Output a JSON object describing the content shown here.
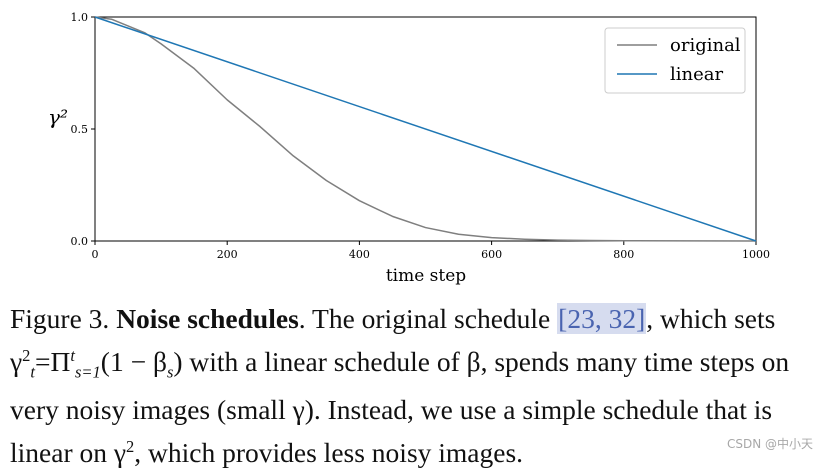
{
  "chart_data": {
    "type": "line",
    "xlabel": "time step",
    "ylabel": "γ²",
    "xlim": [
      0,
      1000
    ],
    "ylim": [
      0,
      1.0
    ],
    "xticks": [
      0,
      200,
      400,
      600,
      800,
      1000
    ],
    "yticks": [
      0.0,
      0.5,
      1.0
    ],
    "legend_position": "top-right",
    "series": [
      {
        "name": "original",
        "color": "#7f7f7f",
        "x": [
          0,
          25,
          50,
          75,
          100,
          150,
          200,
          250,
          300,
          350,
          400,
          450,
          500,
          550,
          600,
          650,
          700,
          750,
          800,
          900,
          1000
        ],
        "y": [
          1.0,
          0.99,
          0.96,
          0.93,
          0.88,
          0.77,
          0.63,
          0.51,
          0.38,
          0.27,
          0.18,
          0.11,
          0.06,
          0.03,
          0.015,
          0.008,
          0.004,
          0.002,
          0.001,
          0.0003,
          0.0
        ]
      },
      {
        "name": "linear",
        "color": "#1f77b4",
        "x": [
          0,
          1000
        ],
        "y": [
          1.0,
          0.0
        ]
      }
    ]
  },
  "caption": {
    "label": "Figure 3.",
    "bold_title": "Noise schedules",
    "t1": ". The original schedule ",
    "cite_open": "[",
    "cite1": "23",
    "cite_sep": ", ",
    "cite2": "32",
    "cite_close": "]",
    "t2": ", which sets γ",
    "sub_t": "t",
    "t3": "=Π",
    "t4": "(1 − β",
    "sub_s": "s",
    "t5": ") with a linear schedule of β, spends many time steps on very noisy images (small γ). Instead, we use a simple schedule that is linear on γ",
    "t6": ", which provides less noisy images."
  },
  "watermark": "CSDN @中小天"
}
